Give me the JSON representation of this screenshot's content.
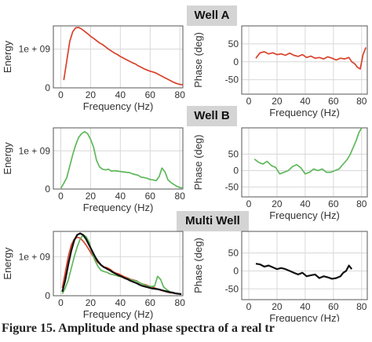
{
  "sections": [
    {
      "title": "Well A"
    },
    {
      "title": "Well B"
    },
    {
      "title": "Multi Well"
    }
  ],
  "colors": {
    "well_a": "#d9412a",
    "well_b": "#5fb85b",
    "multi": "#111111",
    "grid": "#d8d8d8",
    "axis": "#555555"
  },
  "caption": "Figure 15. Amplitude and phase spectra of a real tr",
  "chart_data": [
    {
      "type": "line",
      "panel": "Well A energy",
      "xlabel": "Frequency (Hz)",
      "ylabel": "Energy",
      "xlim": [
        -5,
        82
      ],
      "ylim": [
        0,
        1600000000
      ],
      "xticks": [
        0,
        20,
        40,
        60,
        80
      ],
      "yticks": [
        {
          "value": 0,
          "label": "0"
        },
        {
          "value": 1000000000,
          "label": "1e + 09"
        }
      ],
      "series": [
        {
          "color": "#d9412a",
          "x": [
            2,
            4,
            6,
            8,
            10,
            12,
            14,
            16,
            18,
            20,
            22,
            24,
            26,
            28,
            30,
            32,
            34,
            36,
            38,
            40,
            42,
            44,
            46,
            48,
            50,
            52,
            54,
            56,
            58,
            60,
            62,
            64,
            66,
            68,
            70,
            72,
            74,
            76,
            78,
            80,
            82
          ],
          "y": [
            200000000,
            700000000,
            1200000000,
            1450000000,
            1550000000,
            1560000000,
            1520000000,
            1460000000,
            1400000000,
            1330000000,
            1280000000,
            1220000000,
            1160000000,
            1120000000,
            1060000000,
            1000000000,
            950000000,
            900000000,
            860000000,
            810000000,
            770000000,
            730000000,
            690000000,
            650000000,
            620000000,
            570000000,
            530000000,
            490000000,
            460000000,
            430000000,
            410000000,
            380000000,
            340000000,
            300000000,
            260000000,
            220000000,
            180000000,
            140000000,
            110000000,
            90000000,
            80000000
          ]
        }
      ]
    },
    {
      "type": "line",
      "panel": "Well A phase",
      "xlabel": "Frequency (Hz)",
      "ylabel": "Phase (deg)",
      "xlim": [
        -5,
        84
      ],
      "ylim": [
        -90,
        100
      ],
      "xticks": [
        0,
        20,
        40,
        60,
        80
      ],
      "yticks": [
        {
          "value": 50,
          "label": "50"
        },
        {
          "value": 0,
          "label": "0"
        },
        {
          "value": -50,
          "label": "-50"
        }
      ],
      "series": [
        {
          "color": "#d9412a",
          "x": [
            5,
            8,
            11,
            14,
            17,
            20,
            23,
            26,
            29,
            32,
            35,
            38,
            41,
            44,
            47,
            50,
            53,
            56,
            59,
            62,
            65,
            68,
            71,
            73,
            75,
            77,
            79,
            81,
            83
          ],
          "y": [
            10,
            25,
            28,
            22,
            25,
            20,
            22,
            18,
            24,
            18,
            15,
            20,
            12,
            16,
            10,
            12,
            8,
            14,
            10,
            5,
            10,
            8,
            12,
            0,
            -5,
            -15,
            -20,
            20,
            40
          ]
        }
      ]
    },
    {
      "type": "line",
      "panel": "Well B energy",
      "xlabel": "Frequency (Hz)",
      "ylabel": "Energy",
      "xlim": [
        -5,
        82
      ],
      "ylim": [
        0,
        1600000000
      ],
      "xticks": [
        0,
        20,
        40,
        60,
        80
      ],
      "yticks": [
        {
          "value": 0,
          "label": "0"
        },
        {
          "value": 1000000000,
          "label": "1e + 09"
        }
      ],
      "series": [
        {
          "color": "#5fb85b",
          "x": [
            0,
            2,
            4,
            6,
            8,
            10,
            12,
            14,
            16,
            18,
            20,
            22,
            24,
            26,
            28,
            30,
            32,
            34,
            36,
            38,
            40,
            42,
            44,
            46,
            48,
            50,
            52,
            54,
            56,
            58,
            60,
            62,
            64,
            66,
            68,
            70,
            72,
            74,
            76,
            78,
            80,
            82
          ],
          "y": [
            20000000,
            150000000,
            300000000,
            600000000,
            900000000,
            1150000000,
            1350000000,
            1450000000,
            1500000000,
            1450000000,
            1300000000,
            1100000000,
            750000000,
            580000000,
            520000000,
            500000000,
            520000000,
            470000000,
            480000000,
            470000000,
            460000000,
            450000000,
            440000000,
            430000000,
            400000000,
            380000000,
            360000000,
            310000000,
            300000000,
            280000000,
            250000000,
            240000000,
            220000000,
            320000000,
            550000000,
            450000000,
            240000000,
            170000000,
            120000000,
            70000000,
            40000000,
            30000000
          ]
        }
      ]
    },
    {
      "type": "line",
      "panel": "Well B phase",
      "xlabel": "Frequency (Hz)",
      "ylabel": "Phase (deg)",
      "xlim": [
        -5,
        84
      ],
      "ylim": [
        -80,
        130
      ],
      "xticks": [
        0,
        20,
        40,
        60,
        80
      ],
      "yticks": [
        {
          "value": 50,
          "label": "50"
        },
        {
          "value": 0,
          "label": "0"
        },
        {
          "value": -50,
          "label": "-50"
        }
      ],
      "series": [
        {
          "color": "#5fb85b",
          "x": [
            4,
            7,
            10,
            13,
            16,
            19,
            22,
            25,
            28,
            31,
            34,
            37,
            40,
            43,
            46,
            49,
            52,
            55,
            58,
            61,
            64,
            66,
            68,
            70,
            72,
            74,
            76,
            78,
            80
          ],
          "y": [
            35,
            25,
            20,
            28,
            15,
            10,
            -10,
            -5,
            0,
            12,
            18,
            8,
            -10,
            -5,
            5,
            0,
            5,
            -5,
            -5,
            0,
            5,
            15,
            25,
            35,
            50,
            70,
            90,
            115,
            130
          ]
        }
      ]
    },
    {
      "type": "line",
      "panel": "Multi Well energy",
      "xlabel": "Frequency (Hz)",
      "ylabel": "Energy",
      "xlim": [
        -5,
        82
      ],
      "ylim": [
        0,
        1650000000
      ],
      "xticks": [
        0,
        20,
        40,
        60,
        80
      ],
      "yticks": [
        {
          "value": 0,
          "label": "0"
        },
        {
          "value": 1000000000,
          "label": "1e + 09"
        }
      ],
      "series": [
        {
          "color": "#d9412a",
          "x": [
            1,
            3,
            5,
            7,
            9,
            11,
            13,
            15,
            17,
            19,
            21,
            23,
            25,
            27,
            29,
            31,
            33,
            35,
            37,
            39,
            41,
            43,
            45,
            47,
            49,
            51,
            53,
            55,
            57,
            59,
            61,
            63,
            65,
            67,
            69,
            71,
            73,
            75,
            77,
            79,
            81
          ],
          "y": [
            200000000,
            600000000,
            1000000000,
            1300000000,
            1450000000,
            1500000000,
            1480000000,
            1400000000,
            1300000000,
            1180000000,
            1050000000,
            950000000,
            850000000,
            780000000,
            740000000,
            720000000,
            680000000,
            620000000,
            580000000,
            560000000,
            520000000,
            480000000,
            450000000,
            420000000,
            400000000,
            380000000,
            330000000,
            300000000,
            280000000,
            250000000,
            230000000,
            200000000,
            170000000,
            140000000,
            120000000,
            100000000,
            80000000,
            70000000,
            60000000,
            50000000,
            40000000
          ]
        },
        {
          "color": "#5fb85b",
          "x": [
            1,
            3,
            5,
            7,
            9,
            11,
            13,
            15,
            17,
            19,
            21,
            23,
            25,
            27,
            29,
            31,
            33,
            35,
            37,
            39,
            41,
            43,
            45,
            47,
            49,
            51,
            53,
            55,
            57,
            59,
            61,
            63,
            65,
            67,
            69,
            71,
            73,
            75,
            77,
            79,
            81
          ],
          "y": [
            50000000,
            200000000,
            400000000,
            700000000,
            1000000000,
            1250000000,
            1450000000,
            1560000000,
            1520000000,
            1380000000,
            1100000000,
            900000000,
            750000000,
            650000000,
            620000000,
            600000000,
            560000000,
            540000000,
            520000000,
            500000000,
            480000000,
            450000000,
            430000000,
            410000000,
            390000000,
            370000000,
            330000000,
            300000000,
            260000000,
            240000000,
            240000000,
            250000000,
            500000000,
            420000000,
            230000000,
            160000000,
            110000000,
            80000000,
            60000000,
            50000000,
            40000000
          ]
        },
        {
          "color": "#111111",
          "x": [
            1,
            3,
            5,
            7,
            9,
            11,
            13,
            15,
            17,
            19,
            21,
            23,
            25,
            27,
            29,
            31,
            33,
            35,
            37,
            39,
            41,
            43,
            45,
            47,
            49,
            51,
            53,
            55,
            57,
            59,
            61,
            63,
            65,
            67,
            69,
            71,
            73,
            75,
            77,
            79,
            81
          ],
          "y": [
            100000000,
            400000000,
            800000000,
            1150000000,
            1420000000,
            1560000000,
            1600000000,
            1560000000,
            1450000000,
            1300000000,
            1150000000,
            1000000000,
            880000000,
            790000000,
            730000000,
            690000000,
            650000000,
            600000000,
            560000000,
            520000000,
            490000000,
            450000000,
            420000000,
            380000000,
            350000000,
            320000000,
            280000000,
            250000000,
            230000000,
            210000000,
            190000000,
            180000000,
            170000000,
            150000000,
            130000000,
            110000000,
            90000000,
            80000000,
            60000000,
            50000000,
            40000000
          ]
        }
      ]
    },
    {
      "type": "line",
      "panel": "Multi Well phase",
      "xlabel": "Frequency (Hz)",
      "ylabel": "Phase (deg)",
      "xlim": [
        -5,
        84
      ],
      "ylim": [
        -80,
        110
      ],
      "xticks": [
        0,
        20,
        40,
        60,
        80
      ],
      "yticks": [
        {
          "value": 50,
          "label": "50"
        },
        {
          "value": 0,
          "label": "0"
        },
        {
          "value": -50,
          "label": "-50"
        }
      ],
      "series": [
        {
          "color": "#111111",
          "x": [
            5,
            8,
            11,
            14,
            17,
            20,
            23,
            26,
            29,
            32,
            35,
            38,
            41,
            44,
            47,
            50,
            53,
            56,
            59,
            62,
            65,
            67,
            69,
            71,
            73
          ],
          "y": [
            20,
            18,
            12,
            15,
            10,
            5,
            8,
            5,
            0,
            -5,
            -10,
            -5,
            -15,
            -12,
            -10,
            -20,
            -15,
            -18,
            -22,
            -20,
            -15,
            -5,
            0,
            15,
            5
          ]
        }
      ]
    }
  ]
}
